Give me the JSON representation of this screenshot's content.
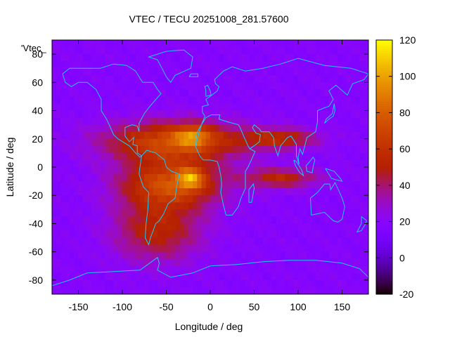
{
  "chart_data": {
    "type": "heatmap",
    "title": "VTEC / TECU 20251008_281.57600",
    "xlabel": "Longitude / deg",
    "ylabel": "Latitude / deg",
    "key_label": "'Vtec_",
    "xlim": [
      -180,
      180
    ],
    "ylim": [
      -90,
      90
    ],
    "xticks": [
      -150,
      -100,
      -50,
      0,
      50,
      100,
      150
    ],
    "yticks": [
      -80,
      -60,
      -40,
      -20,
      0,
      20,
      40,
      60,
      80
    ],
    "colorbar": {
      "min": -20,
      "max": 120,
      "ticks": [
        -20,
        0,
        20,
        40,
        60,
        80,
        100,
        120
      ]
    },
    "background_tecu": 18,
    "features": [
      {
        "name": "equatorial anomaly americas-atlantic north",
        "lon": -40,
        "lat": 18,
        "sig_lon": 55,
        "sig_lat": 10,
        "peak": 55
      },
      {
        "name": "equatorial anomaly americas-atlantic south",
        "lon": -45,
        "lat": -12,
        "sig_lon": 40,
        "sig_lat": 12,
        "peak": 55
      },
      {
        "name": "south atlantic hot spot",
        "lon": -22,
        "lat": -8,
        "sig_lon": 10,
        "sig_lat": 5,
        "peak": 45
      },
      {
        "name": "north hot spot",
        "lon": -20,
        "lat": 22,
        "sig_lon": 14,
        "sig_lat": 5,
        "peak": 35
      },
      {
        "name": "southern extension",
        "lon": -60,
        "lat": -45,
        "sig_lon": 35,
        "sig_lat": 15,
        "peak": 35
      },
      {
        "name": "asia northern crest",
        "lon": 80,
        "lat": 20,
        "sig_lon": 30,
        "sig_lat": 5,
        "peak": 35
      },
      {
        "name": "asia southern crest",
        "lon": 80,
        "lat": -8,
        "sig_lon": 30,
        "sig_lat": 5,
        "peak": 35
      }
    ],
    "coastlines": [
      {
        "name": "north-america",
        "lonlat": [
          [
            -168,
            66
          ],
          [
            -160,
            70
          ],
          [
            -140,
            70
          ],
          [
            -125,
            70
          ],
          [
            -110,
            73
          ],
          [
            -95,
            72
          ],
          [
            -85,
            68
          ],
          [
            -80,
            63
          ],
          [
            -77,
            60
          ],
          [
            -65,
            60
          ],
          [
            -60,
            55
          ],
          [
            -56,
            52
          ],
          [
            -66,
            45
          ],
          [
            -70,
            42
          ],
          [
            -75,
            38
          ],
          [
            -81,
            31
          ],
          [
            -81,
            25
          ],
          [
            -83,
            29
          ],
          [
            -89,
            30
          ],
          [
            -97,
            28
          ],
          [
            -97,
            22
          ],
          [
            -92,
            18
          ],
          [
            -87,
            21
          ],
          [
            -88,
            16
          ],
          [
            -83,
            15
          ],
          [
            -83,
            10
          ],
          [
            -78,
            8
          ],
          [
            -80,
            7
          ],
          [
            -85,
            10
          ],
          [
            -92,
            15
          ],
          [
            -105,
            20
          ],
          [
            -110,
            23
          ],
          [
            -115,
            30
          ],
          [
            -118,
            34
          ],
          [
            -124,
            40
          ],
          [
            -124,
            48
          ],
          [
            -130,
            55
          ],
          [
            -140,
            60
          ],
          [
            -150,
            60
          ],
          [
            -158,
            57
          ],
          [
            -165,
            60
          ],
          [
            -168,
            66
          ]
        ]
      },
      {
        "name": "greenland",
        "lonlat": [
          [
            -50,
            82
          ],
          [
            -30,
            83
          ],
          [
            -20,
            78
          ],
          [
            -22,
            70
          ],
          [
            -40,
            65
          ],
          [
            -45,
            60
          ],
          [
            -50,
            64
          ],
          [
            -55,
            70
          ],
          [
            -60,
            76
          ],
          [
            -70,
            78
          ],
          [
            -50,
            82
          ]
        ]
      },
      {
        "name": "south-america",
        "lonlat": [
          [
            -78,
            8
          ],
          [
            -72,
            12
          ],
          [
            -62,
            10
          ],
          [
            -52,
            5
          ],
          [
            -50,
            0
          ],
          [
            -44,
            -3
          ],
          [
            -35,
            -5
          ],
          [
            -38,
            -13
          ],
          [
            -40,
            -22
          ],
          [
            -48,
            -26
          ],
          [
            -53,
            -33
          ],
          [
            -58,
            -38
          ],
          [
            -62,
            -40
          ],
          [
            -65,
            -45
          ],
          [
            -68,
            -50
          ],
          [
            -70,
            -55
          ],
          [
            -74,
            -50
          ],
          [
            -73,
            -40
          ],
          [
            -71,
            -30
          ],
          [
            -70,
            -18
          ],
          [
            -76,
            -14
          ],
          [
            -81,
            -5
          ],
          [
            -80,
            0
          ],
          [
            -78,
            8
          ]
        ]
      },
      {
        "name": "africa-eurasia",
        "lonlat": [
          [
            -17,
            15
          ],
          [
            -17,
            21
          ],
          [
            -13,
            27
          ],
          [
            -10,
            30
          ],
          [
            -6,
            36
          ],
          [
            -9,
            39
          ],
          [
            -9,
            43
          ],
          [
            -2,
            44
          ],
          [
            -5,
            48
          ],
          [
            2,
            51
          ],
          [
            8,
            54
          ],
          [
            10,
            57
          ],
          [
            6,
            59
          ],
          [
            5,
            62
          ],
          [
            15,
            68
          ],
          [
            25,
            71
          ],
          [
            40,
            68
          ],
          [
            60,
            70
          ],
          [
            80,
            73
          ],
          [
            100,
            77
          ],
          [
            130,
            72
          ],
          [
            160,
            70
          ],
          [
            180,
            66
          ],
          [
            175,
            62
          ],
          [
            162,
            59
          ],
          [
            156,
            51
          ],
          [
            143,
            58
          ],
          [
            135,
            54
          ],
          [
            140,
            48
          ],
          [
            135,
            43
          ],
          [
            130,
            42
          ],
          [
            122,
            40
          ],
          [
            122,
            32
          ],
          [
            120,
            25
          ],
          [
            110,
            21
          ],
          [
            108,
            16
          ],
          [
            105,
            9
          ],
          [
            102,
            13
          ],
          [
            100,
            7
          ],
          [
            101,
            2
          ],
          [
            98,
            8
          ],
          [
            98,
            16
          ],
          [
            92,
            22
          ],
          [
            88,
            21
          ],
          [
            80,
            15
          ],
          [
            77,
            8
          ],
          [
            73,
            15
          ],
          [
            72,
            21
          ],
          [
            67,
            25
          ],
          [
            58,
            25
          ],
          [
            56,
            27
          ],
          [
            50,
            30
          ],
          [
            48,
            28
          ],
          [
            52,
            24
          ],
          [
            57,
            23
          ],
          [
            56,
            18
          ],
          [
            52,
            16
          ],
          [
            45,
            13
          ],
          [
            43,
            15
          ],
          [
            38,
            22
          ],
          [
            34,
            28
          ],
          [
            32,
            30
          ],
          [
            20,
            32
          ],
          [
            10,
            34
          ],
          [
            11,
            37
          ],
          [
            1,
            37
          ],
          [
            -5,
            35
          ],
          [
            -10,
            30
          ],
          [
            -17,
            15
          ]
        ]
      },
      {
        "name": "africa-south",
        "lonlat": [
          [
            -17,
            15
          ],
          [
            -12,
            8
          ],
          [
            -8,
            5
          ],
          [
            0,
            5
          ],
          [
            8,
            4
          ],
          [
            10,
            0
          ],
          [
            12,
            -6
          ],
          [
            13,
            -12
          ],
          [
            12,
            -18
          ],
          [
            15,
            -27
          ],
          [
            18,
            -34
          ],
          [
            25,
            -34
          ],
          [
            32,
            -28
          ],
          [
            35,
            -22
          ],
          [
            40,
            -15
          ],
          [
            40,
            -10
          ],
          [
            40,
            -3
          ],
          [
            43,
            0
          ],
          [
            51,
            11
          ],
          [
            45,
            13
          ]
        ]
      },
      {
        "name": "australia",
        "lonlat": [
          [
            114,
            -22
          ],
          [
            122,
            -18
          ],
          [
            130,
            -12
          ],
          [
            136,
            -12
          ],
          [
            137,
            -16
          ],
          [
            142,
            -11
          ],
          [
            145,
            -15
          ],
          [
            150,
            -22
          ],
          [
            153,
            -28
          ],
          [
            150,
            -37
          ],
          [
            145,
            -39
          ],
          [
            140,
            -38
          ],
          [
            135,
            -35
          ],
          [
            130,
            -32
          ],
          [
            115,
            -34
          ],
          [
            114,
            -22
          ]
        ]
      },
      {
        "name": "antarctica",
        "lonlat": [
          [
            -180,
            -84
          ],
          [
            -160,
            -80
          ],
          [
            -140,
            -75
          ],
          [
            -110,
            -74
          ],
          [
            -80,
            -73
          ],
          [
            -60,
            -64
          ],
          [
            -58,
            -68
          ],
          [
            -60,
            -73
          ],
          [
            -45,
            -78
          ],
          [
            -20,
            -75
          ],
          [
            0,
            -70
          ],
          [
            30,
            -69
          ],
          [
            60,
            -67
          ],
          [
            90,
            -66
          ],
          [
            120,
            -66
          ],
          [
            150,
            -68
          ],
          [
            170,
            -72
          ],
          [
            180,
            -78
          ]
        ]
      },
      {
        "name": "madagascar",
        "lonlat": [
          [
            44,
            -25
          ],
          [
            47,
            -25
          ],
          [
            50,
            -15
          ],
          [
            49,
            -12
          ],
          [
            44,
            -16
          ],
          [
            44,
            -25
          ]
        ]
      },
      {
        "name": "britain",
        "lonlat": [
          [
            -5,
            50
          ],
          [
            1,
            51
          ],
          [
            0,
            54
          ],
          [
            -3,
            58
          ],
          [
            -6,
            57
          ],
          [
            -5,
            54
          ],
          [
            -5,
            50
          ]
        ]
      },
      {
        "name": "japan",
        "lonlat": [
          [
            130,
            31
          ],
          [
            135,
            34
          ],
          [
            140,
            36
          ],
          [
            142,
            40
          ],
          [
            141,
            45
          ],
          [
            139,
            38
          ],
          [
            132,
            34
          ],
          [
            130,
            31
          ]
        ]
      },
      {
        "name": "borneo",
        "lonlat": [
          [
            109,
            1
          ],
          [
            112,
            3
          ],
          [
            117,
            7
          ],
          [
            119,
            5
          ],
          [
            117,
            0
          ],
          [
            116,
            -4
          ],
          [
            110,
            -3
          ],
          [
            109,
            1
          ]
        ]
      },
      {
        "name": "sumatra",
        "lonlat": [
          [
            95,
            5
          ],
          [
            98,
            4
          ],
          [
            104,
            -2
          ],
          [
            106,
            -6
          ],
          [
            102,
            -4
          ],
          [
            97,
            1
          ],
          [
            95,
            5
          ]
        ]
      },
      {
        "name": "new-guinea",
        "lonlat": [
          [
            131,
            -1
          ],
          [
            141,
            -3
          ],
          [
            148,
            -8
          ],
          [
            150,
            -10
          ],
          [
            143,
            -9
          ],
          [
            138,
            -8
          ],
          [
            131,
            -1
          ]
        ]
      },
      {
        "name": "new-zealand",
        "lonlat": [
          [
            172,
            -35
          ],
          [
            178,
            -38
          ],
          [
            176,
            -41
          ],
          [
            172,
            -45
          ],
          [
            167,
            -46
          ],
          [
            172,
            -40
          ],
          [
            172,
            -35
          ]
        ]
      },
      {
        "name": "iceland",
        "lonlat": [
          [
            -24,
            64
          ],
          [
            -22,
            66
          ],
          [
            -14,
            66
          ],
          [
            -14,
            64
          ],
          [
            -24,
            64
          ]
        ]
      }
    ]
  }
}
